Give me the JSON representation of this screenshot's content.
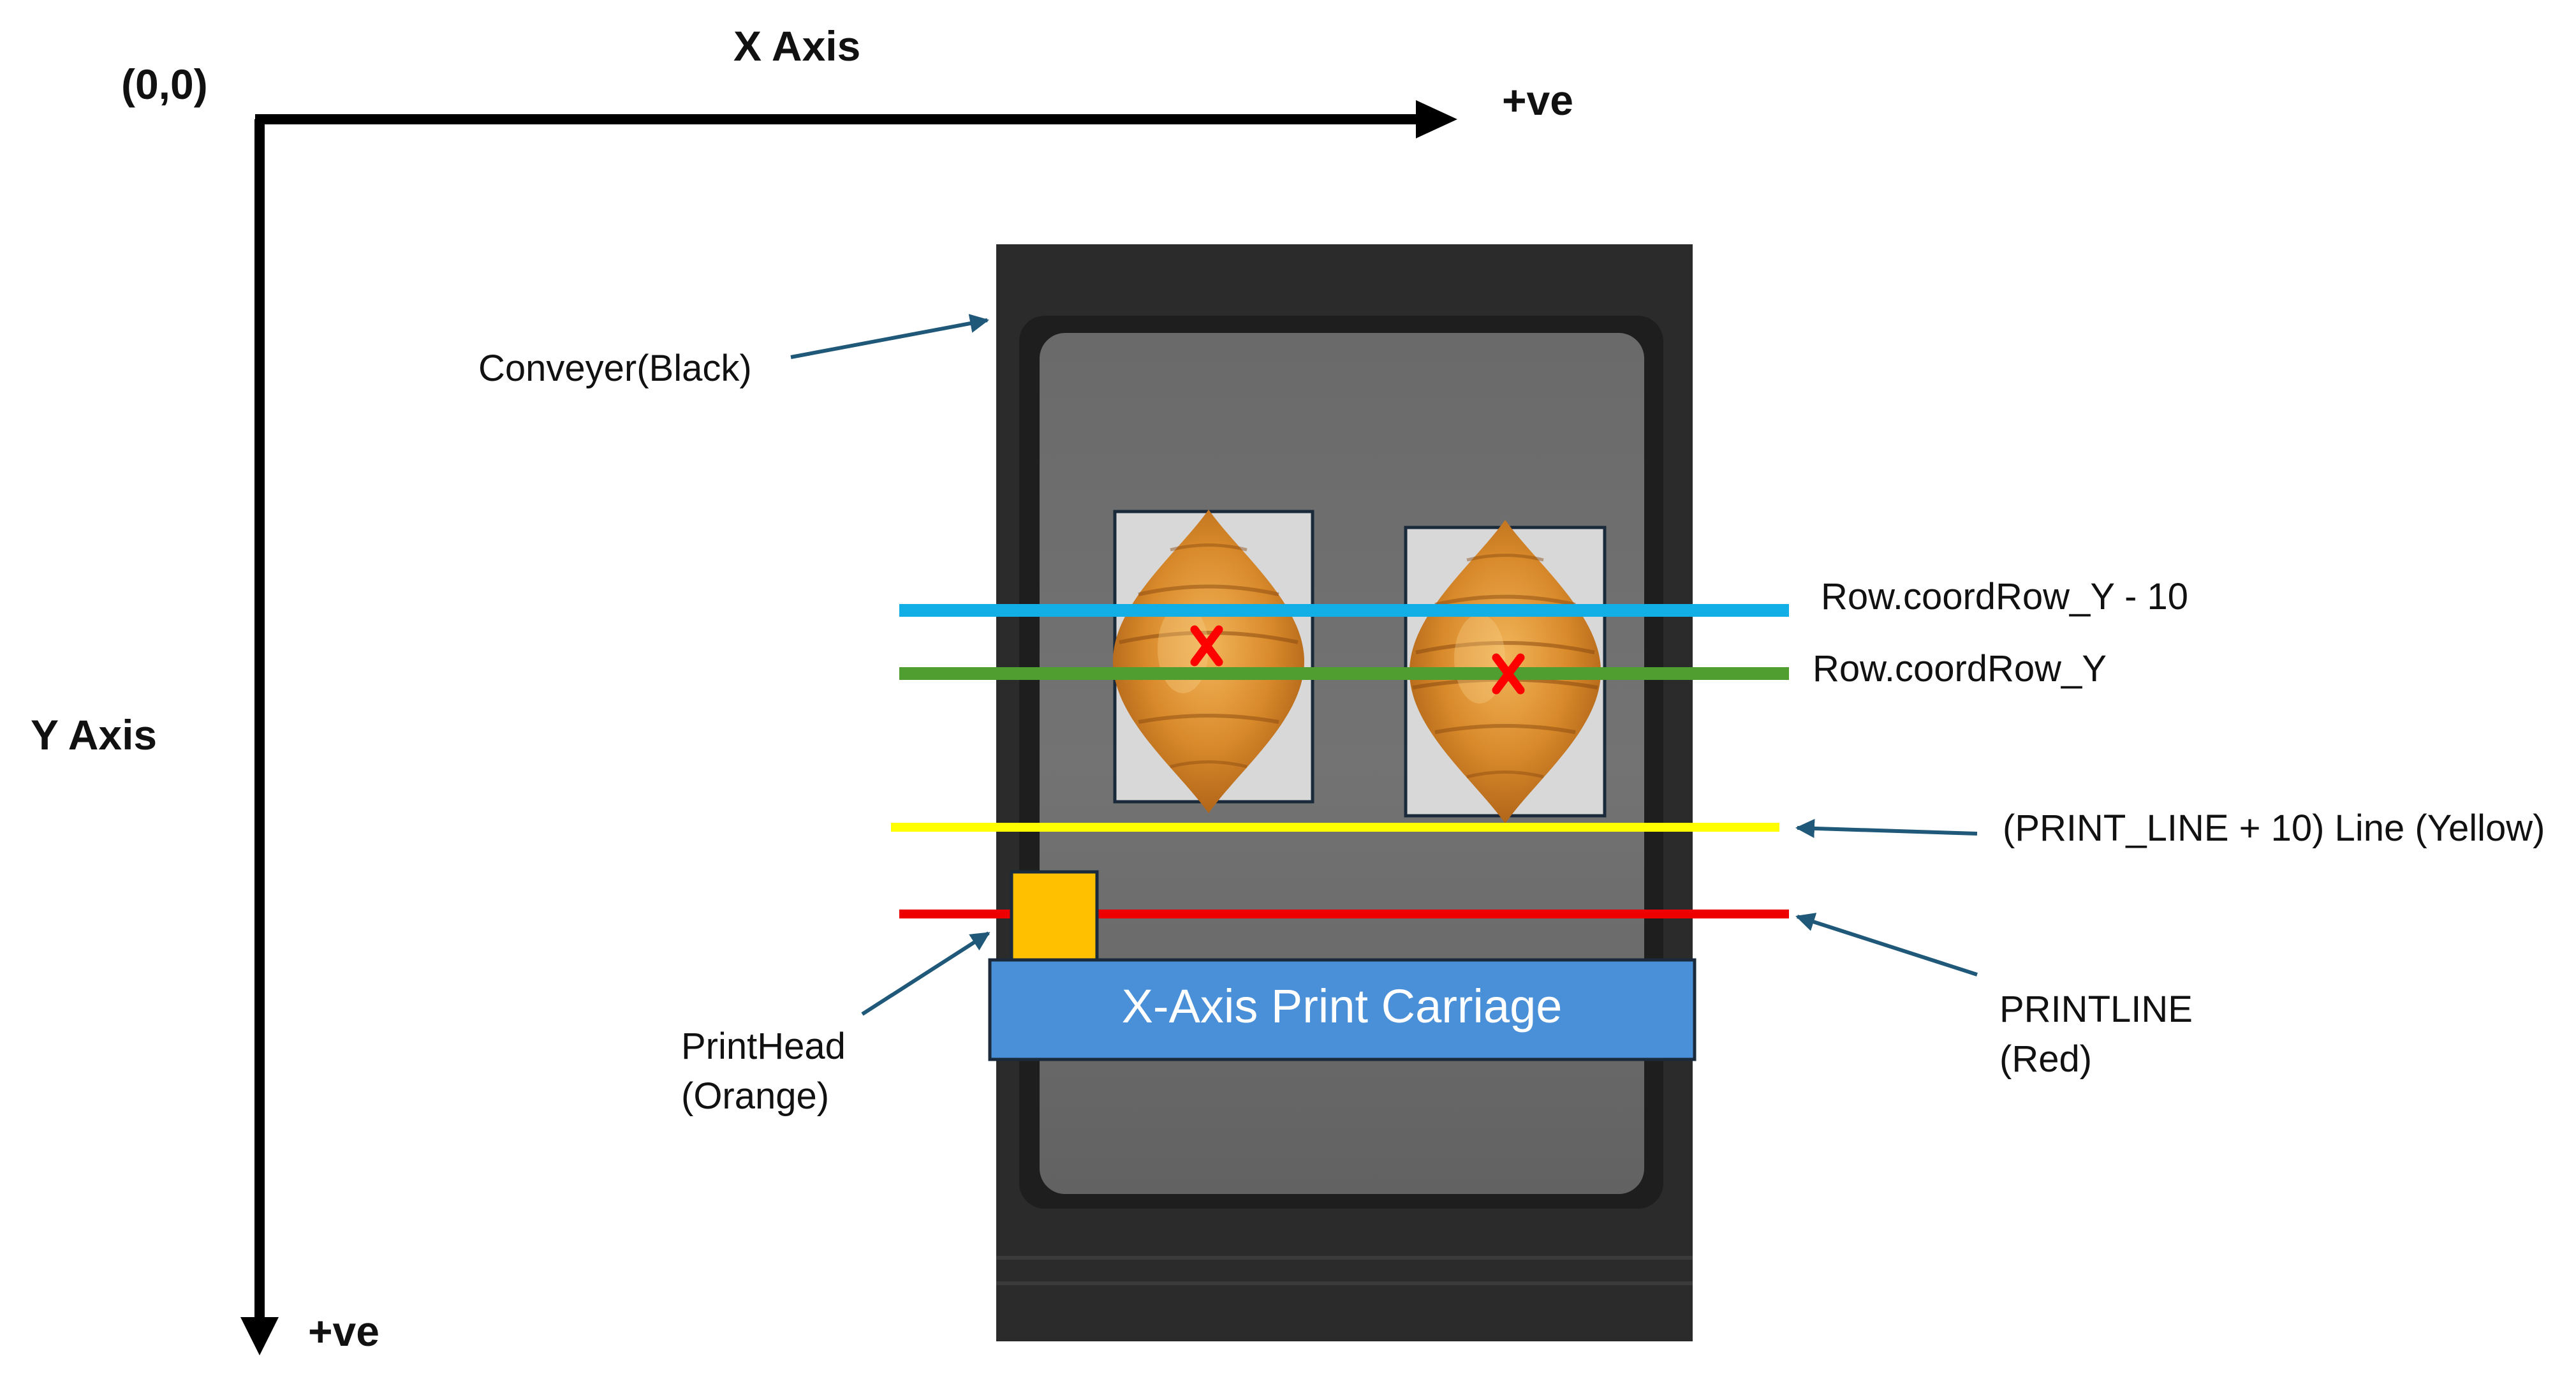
{
  "axes": {
    "origin_label": "(0,0)",
    "x_axis_label": "X Axis",
    "x_positive_label": "+ve",
    "y_axis_label": "Y Axis",
    "y_positive_label": "+ve"
  },
  "components": {
    "conveyor_label": "Conveyer(Black)",
    "carriage_label": "X-Axis Print Carriage",
    "printhead_label_line1": "PrintHead",
    "printhead_label_line2": "(Orange)"
  },
  "lines": {
    "row_minus_10_label": "Row.coordRow_Y - 10",
    "row_label": "Row.coordRow_Y",
    "print_line_plus_10_label": "(PRINT_LINE + 10) Line (Yellow)",
    "printline_label_line1": "PRINTLINE",
    "printline_label_line2": "(Red)"
  },
  "icons": {
    "product_image": "croissant",
    "target_marker": "red-x-marker"
  },
  "colors": {
    "axis": "#000000",
    "conveyor": "#2b2b2b",
    "tray": "#6e6e6e",
    "row_minus_10_line": "#12aee6",
    "row_line": "#4f9e2f",
    "print_line_plus_10": "#ffff00",
    "printline": "#ee0000",
    "printhead": "#ffc000",
    "carriage": "#4a90d9",
    "annotation_arrow": "#1f5878",
    "target_marker": "#ff0000"
  }
}
